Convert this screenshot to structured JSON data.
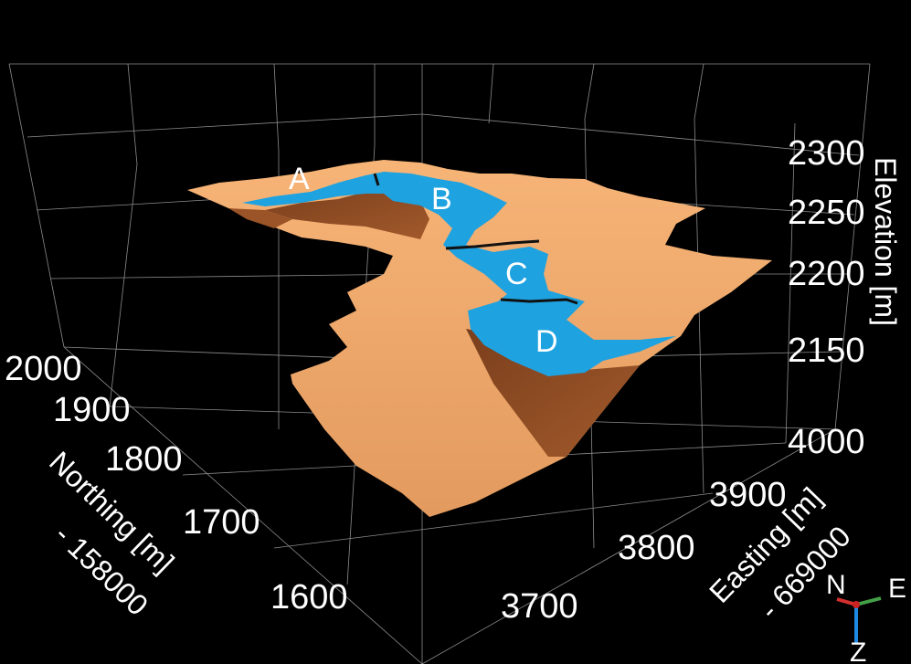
{
  "axes": {
    "northing": {
      "title_line1": "Northing [m]",
      "title_line2": "- 158000",
      "ticks": [
        "2000",
        "1900",
        "1800",
        "1700",
        "1600"
      ]
    },
    "easting": {
      "title_line1": "Easting [m]",
      "title_line2": "- 669000",
      "ticks": [
        "4000",
        "3900",
        "3800",
        "3700"
      ]
    },
    "elevation": {
      "title": "Elevation [m]",
      "ticks": [
        "2300",
        "2250",
        "2200",
        "2150"
      ]
    }
  },
  "lakes": [
    "A",
    "B",
    "C",
    "D"
  ],
  "orientation": {
    "north": "N",
    "east": "E",
    "down": "Z"
  },
  "colors": {
    "background": "#000000",
    "terrain": "#f0a868",
    "terrain_shadow": "#8a4a22",
    "water": "#1ea2e0",
    "grid": "#8c8c8c",
    "north_axis": "#d32f2f",
    "east_axis": "#43a047",
    "down_axis": "#1e88e5"
  }
}
